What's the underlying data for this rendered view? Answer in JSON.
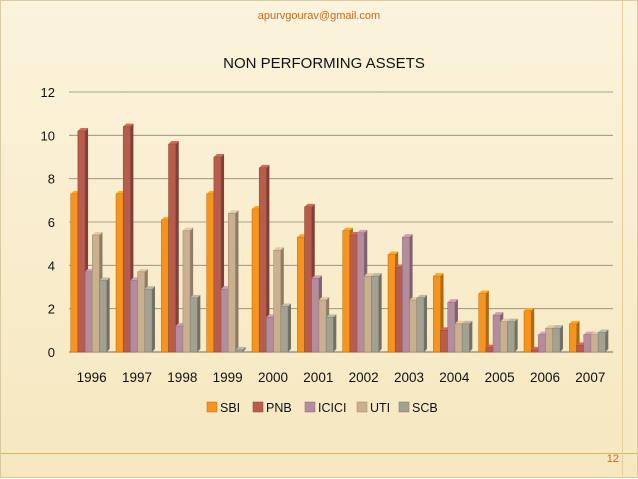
{
  "slide": {
    "email": "apurvgourav@gmail.com",
    "page_number": "12"
  },
  "chart_data": {
    "type": "bar",
    "title": "NON PERFORMING ASSETS",
    "categories": [
      "1996",
      "1997",
      "1998",
      "1999",
      "2000",
      "2001",
      "2002",
      "2003",
      "2004",
      "2005",
      "2006",
      "2007"
    ],
    "series": [
      {
        "name": "SBI",
        "values": [
          7.3,
          7.3,
          6.1,
          7.3,
          6.6,
          5.3,
          5.6,
          4.5,
          3.5,
          2.7,
          1.9,
          1.3
        ]
      },
      {
        "name": "PNB",
        "values": [
          10.2,
          10.4,
          9.6,
          9.0,
          8.5,
          6.7,
          5.4,
          3.9,
          1.0,
          0.2,
          0.1,
          0.3
        ]
      },
      {
        "name": "ICICI",
        "values": [
          3.7,
          3.3,
          1.2,
          2.9,
          1.6,
          3.4,
          5.5,
          5.3,
          2.3,
          1.7,
          0.8,
          0.8
        ]
      },
      {
        "name": "UTI",
        "values": [
          5.4,
          3.7,
          5.6,
          6.4,
          4.7,
          2.4,
          3.5,
          2.4,
          1.3,
          1.4,
          1.1,
          0.8
        ]
      },
      {
        "name": "SCB",
        "values": [
          3.3,
          2.9,
          2.5,
          0.1,
          2.1,
          1.6,
          3.5,
          2.5,
          1.3,
          1.4,
          1.1,
          0.9
        ]
      }
    ],
    "colors": [
      "#f7941d",
      "#b85c4c",
      "#b58c9e",
      "#cbb08f",
      "#a3a192"
    ],
    "ylim": [
      0,
      12
    ],
    "yticks": [
      0,
      2,
      4,
      6,
      8,
      10,
      12
    ],
    "grid": true,
    "legend_position": "bottom"
  }
}
